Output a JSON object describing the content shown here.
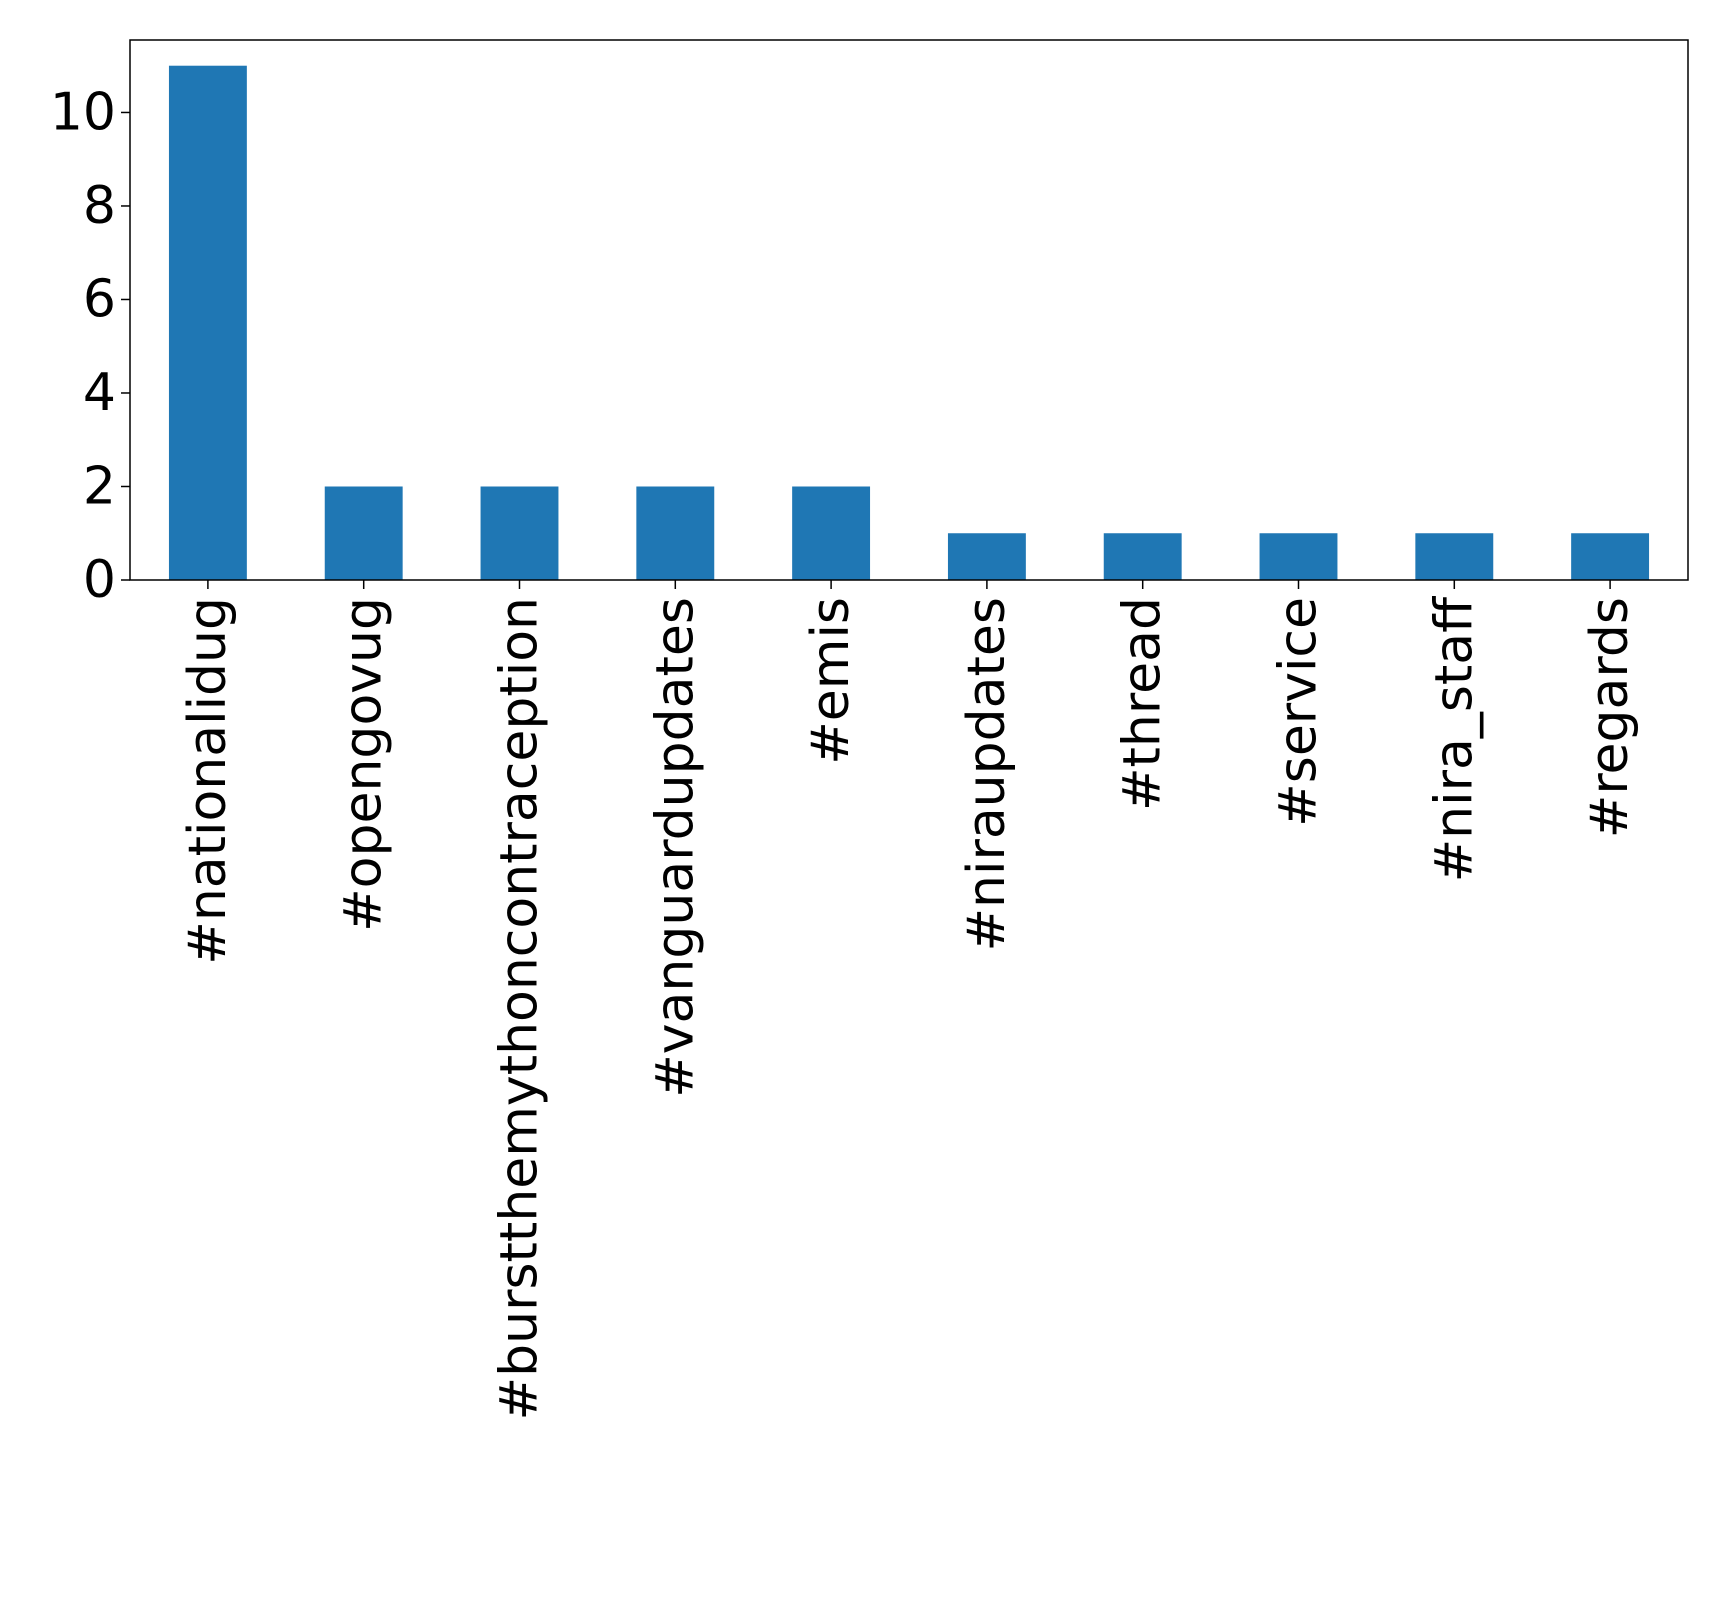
{
  "chart_data": {
    "type": "bar",
    "categories": [
      "#nationalidug",
      "#opengovug",
      "#burstthemythoncontraception",
      "#vanguardupdates",
      "#emis",
      "#niraupdates",
      "#thread",
      "#service",
      "#nira_staff",
      "#regards"
    ],
    "values": [
      11,
      2,
      2,
      2,
      2,
      1,
      1,
      1,
      1,
      1
    ],
    "title": "",
    "xlabel": "",
    "ylabel": "",
    "ylim": [
      0,
      11.55
    ],
    "yticks": [
      0,
      2,
      4,
      6,
      8,
      10
    ],
    "grid": false,
    "legend": false,
    "bar_color": "#1f77b4"
  }
}
